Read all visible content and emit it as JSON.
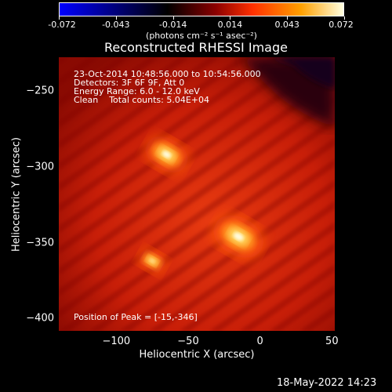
{
  "colorbar": {
    "tick_labels": [
      "-0.072",
      "-0.043",
      "-0.014",
      "0.014",
      "0.043",
      "0.072"
    ],
    "units": "(photons cm⁻² s⁻¹ asec⁻²)",
    "colors": [
      "#0000ff",
      "#000000",
      "#8b0000",
      "#ff3000",
      "#ffa000",
      "#ffffe0"
    ]
  },
  "title": "Reconstructed RHESSI Image",
  "annotations": {
    "line1": "23-Oct-2014 10:48:56.000 to 10:54:56.000",
    "line2": "Detectors: 3F 6F 9F, Att 0",
    "line3": "Energy Range: 6.0 - 12.0 keV",
    "line4": "Clean    Total counts: 5.04E+04",
    "peak": "Position of Peak = [-15,-346]"
  },
  "axes": {
    "xlabel": "Heliocentric X (arcsec)",
    "ylabel": "Heliocentric Y (arcsec)",
    "xticks": [
      "-100",
      "-50",
      "0",
      "50"
    ],
    "yticks": [
      "-250",
      "-300",
      "-350",
      "-400"
    ],
    "xrange": [
      -140,
      52
    ],
    "yrange": [
      -228,
      -408
    ]
  },
  "sources": [
    {
      "x": -65,
      "y": -292,
      "peak": 0.85
    },
    {
      "x": -15,
      "y": -346,
      "peak": 1.0
    },
    {
      "x": -75,
      "y": -362,
      "peak": 0.55
    }
  ],
  "timestamp": "18-May-2022 14:23"
}
